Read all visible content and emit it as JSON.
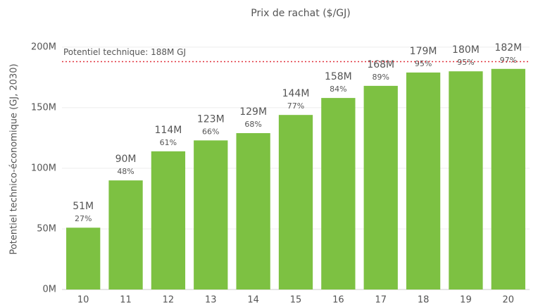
{
  "chart_data": {
    "type": "bar",
    "title": "Prix de rachat ($/GJ)",
    "y_label": "Potentiel technico-économique (GJ, 2030)",
    "categories": [
      "10",
      "11",
      "12",
      "13",
      "14",
      "15",
      "16",
      "17",
      "18",
      "19",
      "20"
    ],
    "values": [
      51000000,
      90000000,
      114000000,
      123000000,
      129000000,
      144000000,
      158000000,
      168000000,
      179000000,
      180000000,
      182000000
    ],
    "value_labels": [
      "51M",
      "90M",
      "114M",
      "123M",
      "129M",
      "144M",
      "158M",
      "168M",
      "179M",
      "180M",
      "182M"
    ],
    "shares": [
      27,
      48,
      61,
      66,
      68,
      77,
      84,
      89,
      95,
      95,
      97
    ],
    "share_labels": [
      "27%",
      "48%",
      "61%",
      "66%",
      "68%",
      "77%",
      "84%",
      "89%",
      "95%",
      "95%",
      "97%"
    ],
    "color": "#7dc142",
    "ylim": [
      0,
      215000000
    ],
    "yticks": [
      {
        "value": 0,
        "label": "0M"
      },
      {
        "value": 50000000,
        "label": "50M"
      },
      {
        "value": 100000000,
        "label": "100M"
      },
      {
        "value": 150000000,
        "label": "150M"
      },
      {
        "value": 200000000,
        "label": "200M"
      }
    ],
    "grid": true,
    "reference_line": {
      "value": 188000000,
      "label": "Potentiel technique: 188M GJ",
      "color": "#e0303a"
    }
  }
}
